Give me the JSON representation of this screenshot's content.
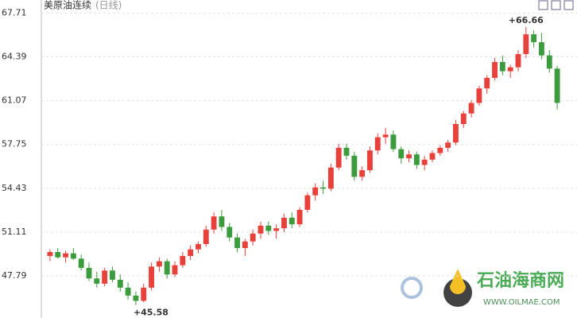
{
  "chart_data": {
    "type": "candlestick",
    "title": "美原油连续",
    "subtitle": "(日线)",
    "ylim": [
      44.6,
      68.7
    ],
    "yticks": [
      67.71,
      64.39,
      61.07,
      57.75,
      54.43,
      51.11,
      47.79
    ],
    "grid": true,
    "up_color": "#e8413c",
    "down_color": "#3c9b3c",
    "annotations": {
      "max": "+66.66",
      "min": "+45.58"
    },
    "watermark": {
      "name": "石油海商网",
      "url": "WWW.OILMAE.COM"
    },
    "series": {
      "open": [
        49.3,
        49.6,
        49.2,
        49.5,
        49.1,
        48.4,
        47.6,
        47.2,
        48.2,
        47.5,
        46.9,
        46.3,
        45.9,
        46.9,
        48.5,
        48.9,
        47.9,
        48.6,
        49.3,
        49.8,
        50.2,
        51.3,
        52.3,
        51.5,
        50.7,
        49.9,
        50.4,
        51.0,
        51.6,
        51.2,
        51.4,
        52.2,
        51.7,
        52.8,
        53.9,
        54.5,
        54.4,
        56.0,
        57.5,
        56.9,
        55.3,
        55.8,
        57.3,
        58.3,
        58.5,
        57.4,
        56.7,
        57.0,
        56.2,
        56.6,
        57.1,
        57.5,
        57.9,
        59.3,
        60.1,
        60.9,
        62.0,
        62.8,
        64.0,
        63.3,
        63.6,
        64.6,
        66.1,
        65.5,
        64.5,
        63.5
      ],
      "high": [
        49.8,
        49.9,
        49.7,
        49.9,
        49.4,
        48.8,
        48.1,
        48.4,
        48.5,
        47.9,
        47.3,
        46.6,
        47.2,
        48.8,
        49.2,
        49.1,
        48.9,
        49.6,
        50.1,
        50.4,
        51.6,
        52.6,
        52.8,
        51.8,
        51.0,
        50.6,
        51.3,
        51.9,
        51.9,
        51.7,
        52.5,
        52.6,
        53.0,
        54.1,
        54.8,
        55.0,
        56.3,
        57.8,
        57.8,
        57.2,
        56.1,
        57.6,
        58.6,
        59.0,
        58.8,
        57.6,
        57.3,
        57.2,
        56.9,
        57.3,
        57.7,
        58.1,
        59.6,
        60.3,
        61.1,
        62.2,
        63.0,
        64.3,
        64.5,
        63.8,
        64.9,
        66.66,
        66.4,
        66.2,
        64.9,
        63.7
      ],
      "low": [
        48.9,
        49.1,
        48.8,
        49.0,
        48.2,
        47.4,
        46.9,
        47.0,
        47.3,
        46.6,
        46.0,
        45.58,
        45.8,
        46.7,
        48.1,
        47.6,
        47.7,
        48.4,
        49.0,
        49.5,
        50.0,
        51.0,
        51.2,
        50.4,
        49.6,
        49.3,
        50.1,
        50.6,
        50.9,
        50.6,
        51.1,
        51.4,
        51.5,
        52.6,
        53.5,
        54.0,
        54.2,
        55.8,
        56.6,
        55.0,
        55.0,
        55.6,
        57.0,
        57.8,
        57.2,
        56.3,
        56.4,
        55.9,
        55.8,
        56.4,
        56.9,
        57.2,
        57.7,
        59.0,
        59.8,
        60.7,
        61.6,
        62.6,
        63.0,
        62.8,
        63.3,
        64.3,
        65.1,
        64.2,
        63.2,
        60.4
      ],
      "close": [
        49.6,
        49.2,
        49.5,
        49.1,
        48.4,
        47.6,
        47.2,
        48.2,
        47.5,
        46.9,
        46.3,
        45.9,
        46.9,
        48.5,
        48.9,
        47.9,
        48.6,
        49.3,
        49.8,
        50.2,
        51.3,
        52.3,
        51.5,
        50.7,
        49.9,
        50.4,
        51.0,
        51.6,
        51.2,
        51.4,
        52.2,
        51.7,
        52.8,
        53.9,
        54.5,
        54.4,
        56.0,
        57.5,
        56.9,
        55.3,
        55.8,
        57.3,
        58.3,
        58.5,
        57.4,
        56.7,
        57.0,
        56.2,
        56.6,
        57.1,
        57.5,
        57.9,
        59.3,
        60.1,
        60.9,
        62.0,
        62.8,
        64.0,
        63.3,
        63.6,
        64.6,
        66.1,
        65.5,
        64.5,
        63.5,
        60.9
      ]
    }
  }
}
